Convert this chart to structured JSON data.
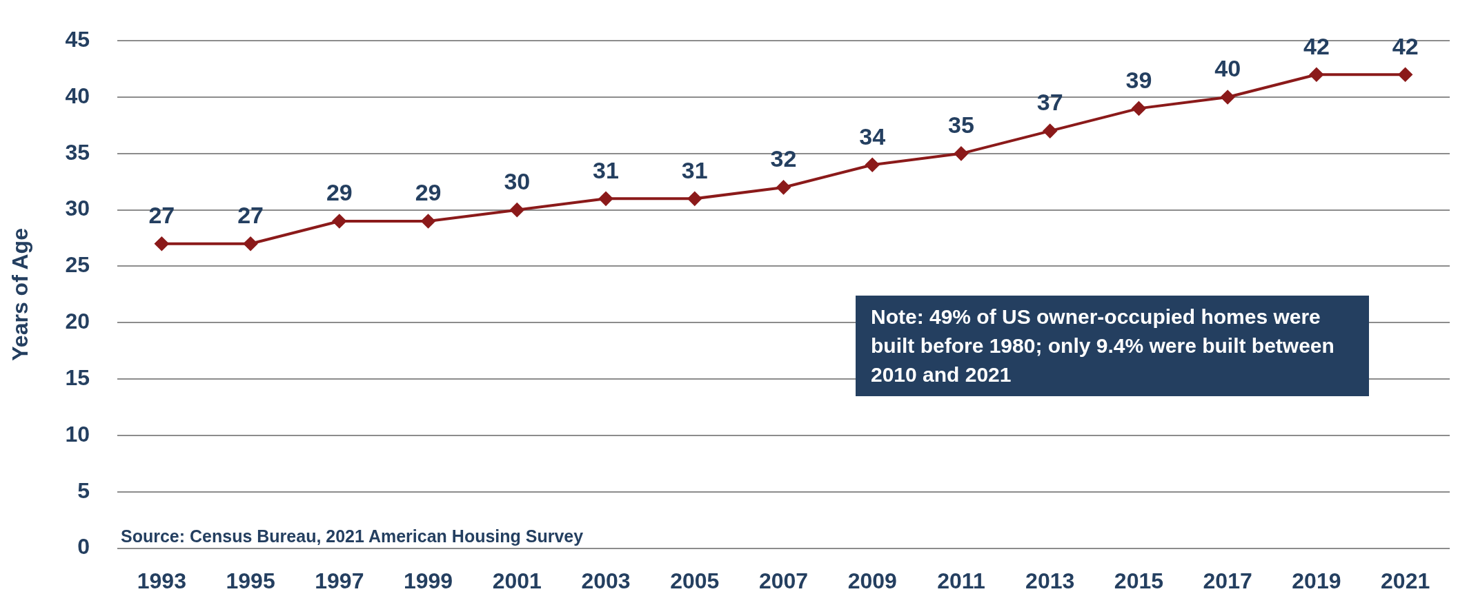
{
  "chart_data": {
    "type": "line",
    "ylabel": "Years of Age",
    "categories": [
      "1993",
      "1995",
      "1997",
      "1999",
      "2001",
      "2003",
      "2005",
      "2007",
      "2009",
      "2011",
      "2013",
      "2015",
      "2017",
      "2019",
      "2021"
    ],
    "series": [
      {
        "color": "#8b1a1a",
        "values": [
          27,
          27,
          29,
          29,
          30,
          31,
          31,
          32,
          34,
          35,
          37,
          39,
          40,
          42,
          42
        ]
      }
    ],
    "ylim": [
      0,
      45
    ],
    "yticks": [
      0,
      5,
      10,
      15,
      20,
      25,
      30,
      35,
      40,
      45
    ],
    "grid": "y",
    "legend": false,
    "marker": "diamond",
    "line_style": "solid",
    "data_labels": true,
    "annotations": [
      "Note: 49% of US owner-occupied homes were built before 1980; only 9.4% were built between 2010 and 2021",
      "Source: Census Bureau, 2021 American Housing Survey"
    ]
  }
}
